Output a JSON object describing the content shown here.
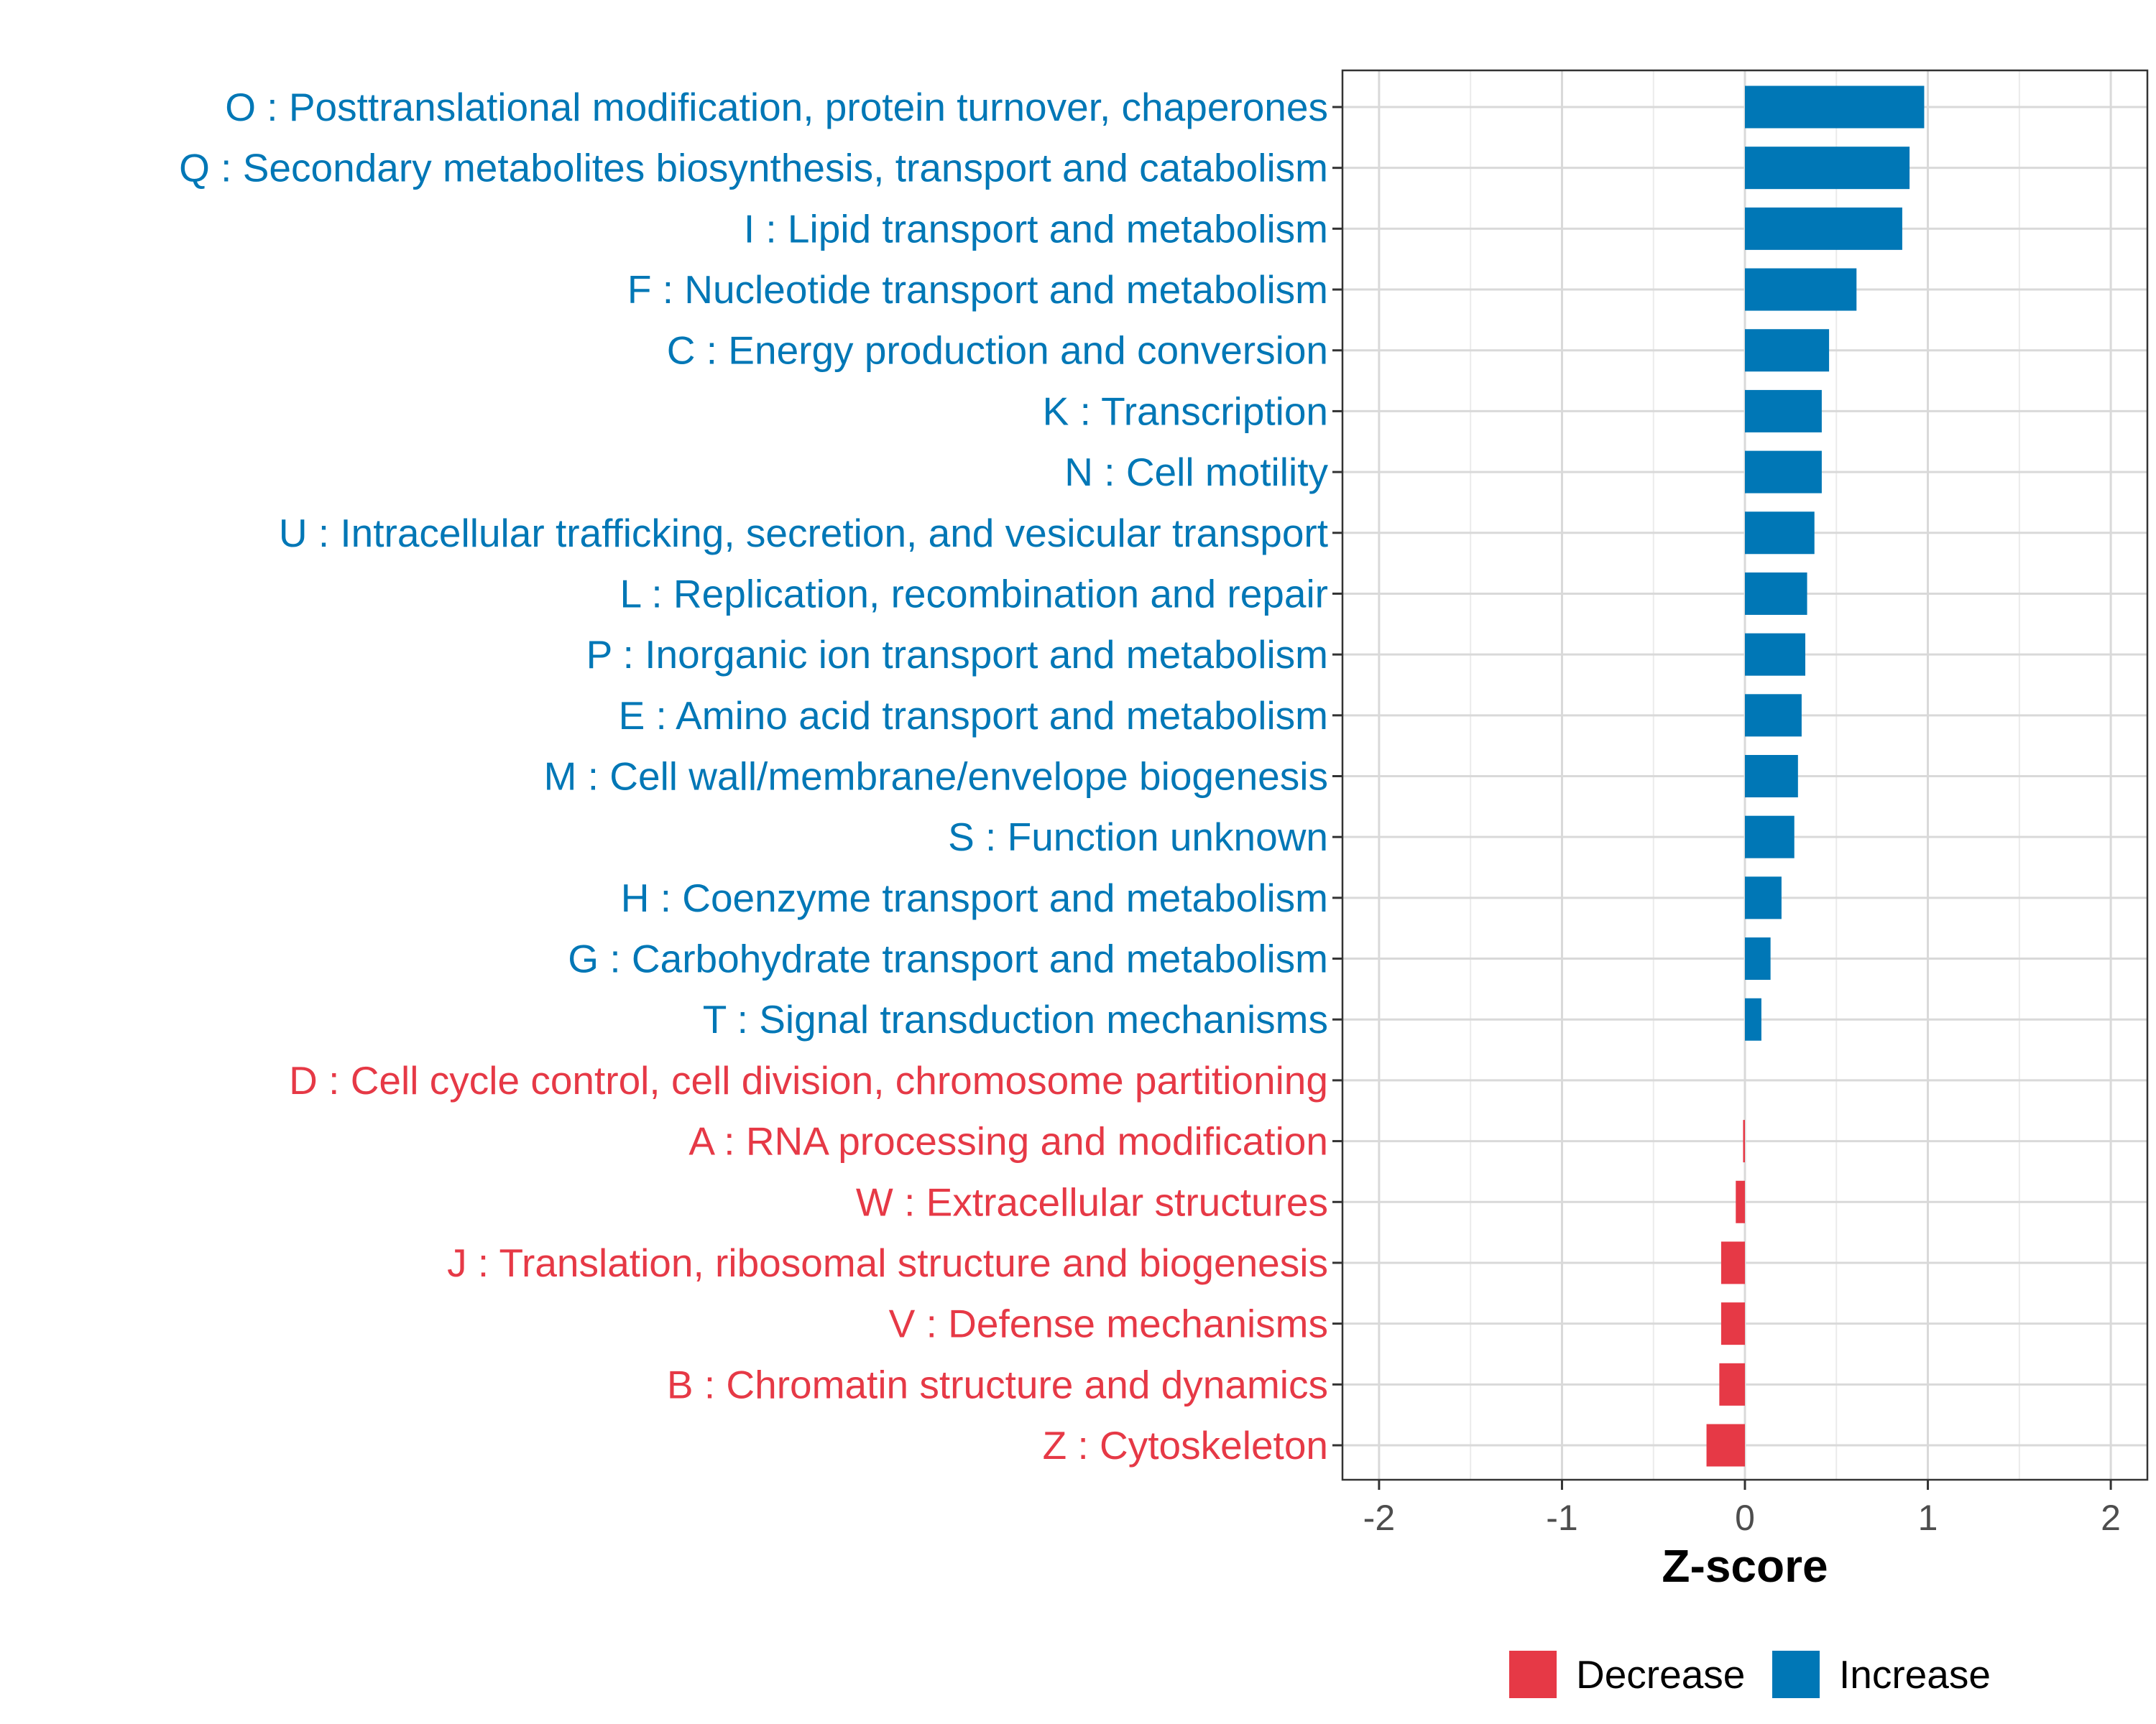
{
  "chart_data": {
    "type": "bar",
    "orientation": "horizontal",
    "title": "",
    "xlabel": "Z-score",
    "ylabel": "",
    "xlim": [
      -2.2,
      2.2
    ],
    "xticks": [
      -2,
      -1,
      0,
      1,
      2
    ],
    "xtick_labels": [
      "-2",
      "-1",
      "0",
      "1",
      "2"
    ],
    "grid": true,
    "legend_position": "bottom",
    "colors": {
      "Decrease": "#E63946",
      "Increase": "#0077B6"
    },
    "legend": [
      {
        "label": "Decrease",
        "color": "#E63946"
      },
      {
        "label": "Increase",
        "color": "#0077B6"
      }
    ],
    "categories": [
      "O : Posttranslational modification, protein turnover, chaperones",
      "Q : Secondary metabolites biosynthesis, transport and catabolism",
      "I : Lipid transport and metabolism",
      "F : Nucleotide transport and metabolism",
      "C : Energy production and conversion",
      "K : Transcription",
      "N : Cell motility",
      "U : Intracellular trafficking, secretion, and vesicular transport",
      "L : Replication, recombination and repair",
      "P : Inorganic ion transport and metabolism",
      "E : Amino acid transport and metabolism",
      "M : Cell wall/membrane/envelope biogenesis",
      "S : Function unknown",
      "H : Coenzyme transport and metabolism",
      "G : Carbohydrate transport and metabolism",
      "T : Signal transduction mechanisms",
      "D : Cell cycle control, cell division, chromosome partitioning",
      "A : RNA processing and modification",
      "W : Extracellular structures",
      "J : Translation, ribosomal structure and biogenesis",
      "V : Defense mechanisms",
      "B : Chromatin structure and dynamics",
      "Z : Cytoskeleton"
    ],
    "values": [
      0.98,
      0.9,
      0.86,
      0.61,
      0.46,
      0.42,
      0.42,
      0.38,
      0.34,
      0.33,
      0.31,
      0.29,
      0.27,
      0.2,
      0.14,
      0.09,
      0.0,
      -0.01,
      -0.05,
      -0.13,
      -0.13,
      -0.14,
      -0.21
    ],
    "groups": [
      "Increase",
      "Increase",
      "Increase",
      "Increase",
      "Increase",
      "Increase",
      "Increase",
      "Increase",
      "Increase",
      "Increase",
      "Increase",
      "Increase",
      "Increase",
      "Increase",
      "Increase",
      "Increase",
      "Decrease",
      "Decrease",
      "Decrease",
      "Decrease",
      "Decrease",
      "Decrease",
      "Decrease"
    ]
  }
}
